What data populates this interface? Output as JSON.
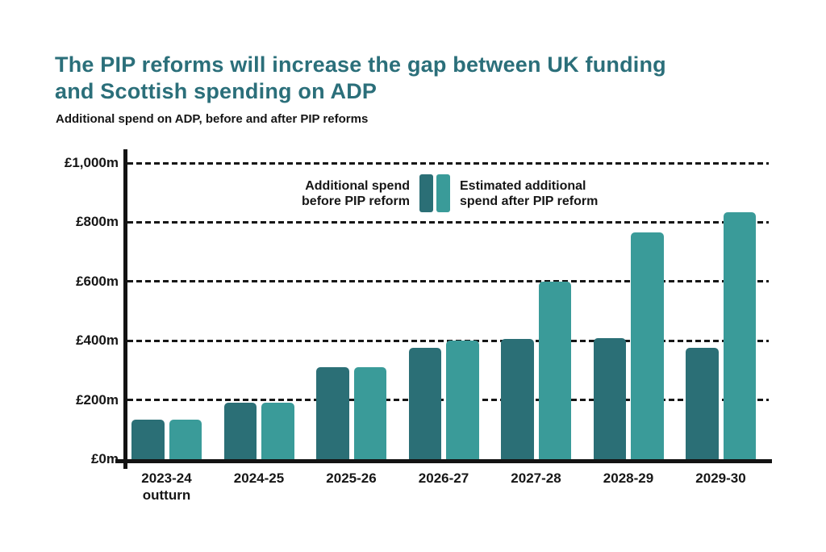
{
  "header": {
    "title_lines": [
      "The PIP reforms will increase the gap between UK funding",
      "and Scottish spending on ADP"
    ],
    "subtitle": "Additional spend on ADP, before and after PIP reforms"
  },
  "legend": {
    "before_lines": [
      "Additional spend",
      "before PIP reform"
    ],
    "after_lines": [
      "Estimated additional",
      "spend after PIP reform"
    ]
  },
  "colors": {
    "title": "#2b6f7a",
    "bar_before": "#2b6f76",
    "bar_after": "#3a9b99",
    "text": "#161616",
    "axis": "#131313"
  },
  "chart_data": {
    "type": "bar",
    "title": "The PIP reforms will increase the gap between UK funding and Scottish spending on ADP",
    "subtitle": "Additional spend on ADP, before and after PIP reforms",
    "unit": "£m",
    "categories": [
      "2023-24 outturn",
      "2024-25",
      "2025-26",
      "2026-27",
      "2027-28",
      "2028-29",
      "2029-30"
    ],
    "category_label_lines": [
      [
        "2023-24",
        "outturn"
      ],
      [
        "2024-25"
      ],
      [
        "2025-26"
      ],
      [
        "2026-27"
      ],
      [
        "2027-28"
      ],
      [
        "2028-29"
      ],
      [
        "2029-30"
      ]
    ],
    "series": [
      {
        "name": "Additional spend before PIP reform",
        "color_key": "bar_before",
        "values": [
          135,
          190,
          310,
          375,
          405,
          410,
          375
        ]
      },
      {
        "name": "Estimated additional spend after PIP reform",
        "color_key": "bar_after",
        "values": [
          135,
          190,
          310,
          400,
          600,
          765,
          835
        ]
      }
    ],
    "y_axis": {
      "ticks": [
        {
          "label": "£1,000m",
          "value": 1000
        },
        {
          "label": "£800m",
          "value": 800
        },
        {
          "label": "£600m",
          "value": 600
        },
        {
          "label": "£400m",
          "value": 400
        },
        {
          "label": "£200m",
          "value": 200
        },
        {
          "label": "£0m",
          "value": 0
        }
      ],
      "max": 1000
    },
    "ylim": [
      0,
      1000
    ],
    "grid": "horizontal-dashed",
    "legend_position": "top-inside"
  }
}
